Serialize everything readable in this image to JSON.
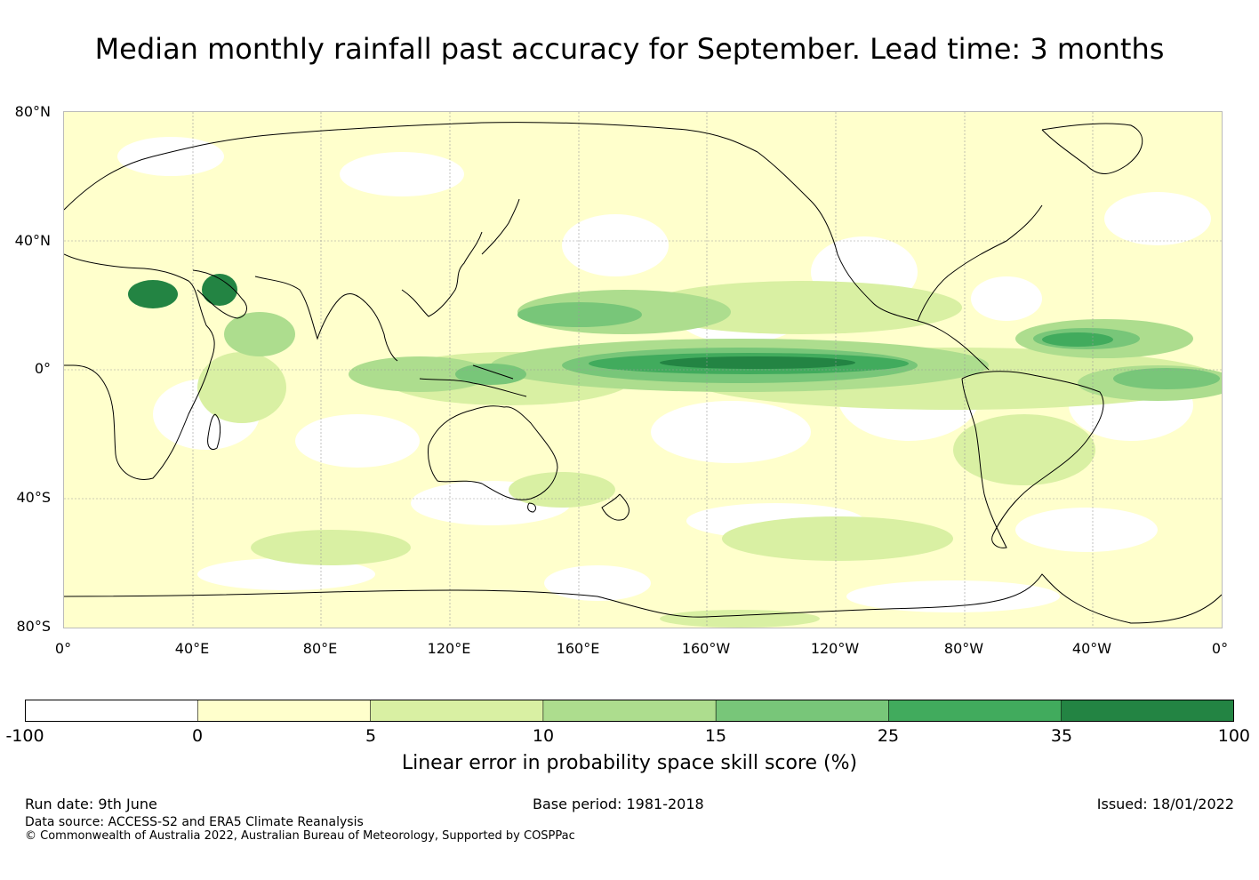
{
  "title": "Median monthly rainfall past accuracy for September. Lead time: 3 months",
  "map": {
    "latitude_labels": [
      "80°N",
      "40°N",
      "0°",
      "40°S",
      "80°S"
    ],
    "longitude_labels": [
      "0°",
      "40°E",
      "80°E",
      "120°E",
      "160°E",
      "160°W",
      "120°W",
      "80°W",
      "40°W",
      "0°"
    ],
    "grid": true,
    "land_outline_color": "#000000"
  },
  "colorbar": {
    "boundaries": [
      "-100",
      "0",
      "5",
      "10",
      "15",
      "25",
      "35",
      "100"
    ],
    "colors": [
      "#ffffff",
      "#ffffcc",
      "#d9f0a3",
      "#addd8e",
      "#78c679",
      "#41ab5d",
      "#238443"
    ],
    "title": "Linear error in probability space skill score (%)"
  },
  "footer": {
    "run_date": "Run date: 9th June",
    "base_period": "Base period: 1981-2018",
    "issued": "Issued: 18/01/2022",
    "data_source": "Data source: ACCESS-S2 and ERA5 Climate Reanalysis",
    "copyright": "© Commonwealth of Australia 2022, Australian Bureau of Meteorology, Supported by COSPPac"
  }
}
